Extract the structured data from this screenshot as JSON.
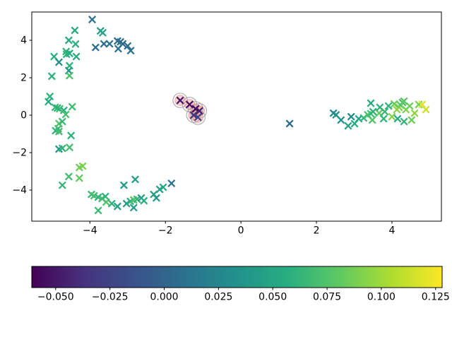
{
  "figure": {
    "kind": "matplotlib-style-figure",
    "background": "#ffffff",
    "title": ""
  },
  "chart_data": {
    "type": "scatter",
    "title": "",
    "xlabel": "",
    "ylabel": "",
    "marker": "x",
    "grid": false,
    "colormap": "viridis",
    "xlim": [
      -5.54,
      5.31
    ],
    "ylim": [
      -5.66,
      5.51
    ],
    "xticks": {
      "values": [
        -4,
        -2,
        0,
        2,
        4
      ],
      "labels": [
        "−4",
        "−2",
        "0",
        "2",
        "4"
      ]
    },
    "yticks": {
      "values": [
        -4,
        -2,
        0,
        2,
        4
      ],
      "labels": [
        "−4",
        "−2",
        "0",
        "2",
        "4"
      ]
    },
    "points": [
      [
        -3.94,
        5.11,
        0.01
      ],
      [
        -4.4,
        4.53,
        0.052
      ],
      [
        -3.72,
        4.5,
        0.046
      ],
      [
        -3.66,
        4.4,
        0.05
      ],
      [
        -4.56,
        4.0,
        0.052
      ],
      [
        -4.38,
        3.8,
        0.058
      ],
      [
        -3.85,
        3.62,
        0.005
      ],
      [
        -3.63,
        3.81,
        0.008
      ],
      [
        -3.48,
        3.81,
        0.01
      ],
      [
        -3.27,
        3.96,
        0.006
      ],
      [
        -3.19,
        3.92,
        0.01
      ],
      [
        -3.13,
        3.81,
        0.004
      ],
      [
        -3.25,
        3.55,
        0.008
      ],
      [
        -3.0,
        3.7,
        0.006
      ],
      [
        -2.92,
        3.45,
        0.009
      ],
      [
        -4.63,
        3.4,
        0.06
      ],
      [
        -4.95,
        3.13,
        0.058
      ],
      [
        -4.62,
        3.25,
        0.062
      ],
      [
        -4.54,
        3.3,
        0.056
      ],
      [
        -4.36,
        3.13,
        0.055
      ],
      [
        -4.82,
        2.83,
        0.035
      ],
      [
        -4.54,
        2.64,
        0.06
      ],
      [
        -4.56,
        2.38,
        0.038
      ],
      [
        -5.01,
        2.08,
        0.058
      ],
      [
        -4.54,
        2.11,
        0.072
      ],
      [
        -5.06,
        1.0,
        0.06
      ],
      [
        -5.1,
        0.72,
        0.055
      ],
      [
        -4.92,
        0.42,
        0.065
      ],
      [
        -4.8,
        0.34,
        0.07
      ],
      [
        -4.69,
        0.26,
        0.058
      ],
      [
        -4.47,
        0.45,
        0.068
      ],
      [
        -4.64,
        0.04,
        0.072
      ],
      [
        -4.86,
        0.38,
        0.06
      ],
      [
        -4.82,
        -0.45,
        0.075
      ],
      [
        -4.73,
        -0.34,
        0.065
      ],
      [
        -4.84,
        -0.72,
        0.07
      ],
      [
        -4.91,
        -0.83,
        0.062
      ],
      [
        -4.82,
        -0.87,
        0.068
      ],
      [
        -4.5,
        -1.09,
        0.06
      ],
      [
        -4.82,
        -1.81,
        0.04
      ],
      [
        -4.73,
        -1.77,
        0.062
      ],
      [
        -4.54,
        -1.72,
        0.068
      ],
      [
        -4.28,
        -2.79,
        0.085
      ],
      [
        -4.19,
        -2.72,
        0.09
      ],
      [
        -4.56,
        -3.28,
        0.068
      ],
      [
        -4.28,
        -3.36,
        0.082
      ],
      [
        -4.73,
        -3.74,
        0.065
      ],
      [
        -3.96,
        -4.23,
        0.065
      ],
      [
        -3.89,
        -4.3,
        0.072
      ],
      [
        -3.78,
        -4.38,
        0.06
      ],
      [
        -3.68,
        -4.45,
        0.068
      ],
      [
        -3.59,
        -4.34,
        0.062
      ],
      [
        -3.78,
        -5.09,
        0.065
      ],
      [
        -3.27,
        -4.87,
        0.045
      ],
      [
        -3.42,
        -4.72,
        0.06
      ],
      [
        -3.57,
        -4.64,
        0.075
      ],
      [
        -3.1,
        -3.74,
        0.04
      ],
      [
        -2.8,
        -3.43,
        0.045
      ],
      [
        -3.03,
        -4.72,
        0.042
      ],
      [
        -2.93,
        -4.6,
        0.06
      ],
      [
        -2.84,
        -4.53,
        0.075
      ],
      [
        -2.75,
        -4.49,
        0.062
      ],
      [
        -2.64,
        -4.42,
        0.042
      ],
      [
        -2.57,
        -4.57,
        0.058
      ],
      [
        -2.84,
        -4.94,
        0.044
      ],
      [
        -2.31,
        -4.23,
        0.046
      ],
      [
        -2.24,
        -4.42,
        0.04
      ],
      [
        -2.06,
        -3.85,
        0.055
      ],
      [
        -2.15,
        -3.96,
        0.046
      ],
      [
        -1.84,
        -3.64,
        0.012
      ],
      [
        -1.61,
        0.79,
        -0.05,
        1
      ],
      [
        -1.36,
        0.57,
        -0.053,
        1
      ],
      [
        -1.2,
        0.34,
        -0.057,
        1
      ],
      [
        -1.1,
        0.23,
        -0.046,
        1
      ],
      [
        -1.25,
        0.0,
        -0.038,
        1
      ],
      [
        -1.14,
        -0.11,
        -0.022,
        1
      ],
      [
        1.29,
        -0.45,
        0.005
      ],
      [
        2.45,
        0.11,
        0.028
      ],
      [
        2.52,
        0.02,
        0.032
      ],
      [
        2.65,
        -0.26,
        0.035
      ],
      [
        2.92,
        -0.08,
        0.03
      ],
      [
        2.84,
        -0.57,
        0.048
      ],
      [
        3.01,
        -0.45,
        0.055
      ],
      [
        3.12,
        -0.19,
        0.05
      ],
      [
        3.25,
        -0.15,
        0.062
      ],
      [
        3.36,
        0.02,
        0.072
      ],
      [
        3.44,
        0.08,
        0.068
      ],
      [
        3.5,
        0.19,
        0.06
      ],
      [
        3.44,
        0.64,
        0.055
      ],
      [
        3.48,
        -0.26,
        0.075
      ],
      [
        3.66,
        0.11,
        0.082
      ],
      [
        3.68,
        0.42,
        0.06
      ],
      [
        3.81,
        0.19,
        0.065
      ],
      [
        3.91,
        0.49,
        0.062
      ],
      [
        4.06,
        0.6,
        0.085
      ],
      [
        4.19,
        0.42,
        0.088
      ],
      [
        4.23,
        0.53,
        0.078
      ],
      [
        4.28,
        0.68,
        0.07
      ],
      [
        4.37,
        0.3,
        0.092
      ],
      [
        4.47,
        0.49,
        0.085
      ],
      [
        4.6,
        0.11,
        0.095
      ],
      [
        4.71,
        0.57,
        0.088
      ],
      [
        4.9,
        0.3,
        0.115
      ],
      [
        3.78,
        -0.19,
        0.062
      ],
      [
        4.0,
        -0.08,
        0.092
      ],
      [
        4.15,
        -0.19,
        0.055
      ],
      [
        4.32,
        -0.34,
        0.062
      ],
      [
        4.52,
        -0.26,
        0.085
      ],
      [
        4.8,
        0.57,
        0.118
      ],
      [
        4.32,
        0.75,
        0.08
      ],
      [
        4.13,
        0.3,
        0.095
      ]
    ],
    "highlight_style": {
      "inner_fill": "rgba(242,146,146,0.40)",
      "inner_edge": "rgba(222,96,96,0.50)",
      "outer_edge": "rgba(160,160,160,0.90)"
    },
    "colorbar": {
      "orientation": "horizontal",
      "vmin": -0.061,
      "vmax": 0.128,
      "tick_values": [
        -0.05,
        -0.025,
        0.0,
        0.025,
        0.05,
        0.075,
        0.1,
        0.125
      ],
      "tick_labels": [
        "−0.050",
        "−0.025",
        "0.000",
        "0.025",
        "0.050",
        "0.075",
        "0.100",
        "0.125"
      ],
      "stops": [
        "#440154",
        "#46327e",
        "#3a528b",
        "#2c728e",
        "#21918c",
        "#28ae80",
        "#5ec962",
        "#addc30",
        "#fde725"
      ],
      "outline_color": "#000000"
    }
  }
}
